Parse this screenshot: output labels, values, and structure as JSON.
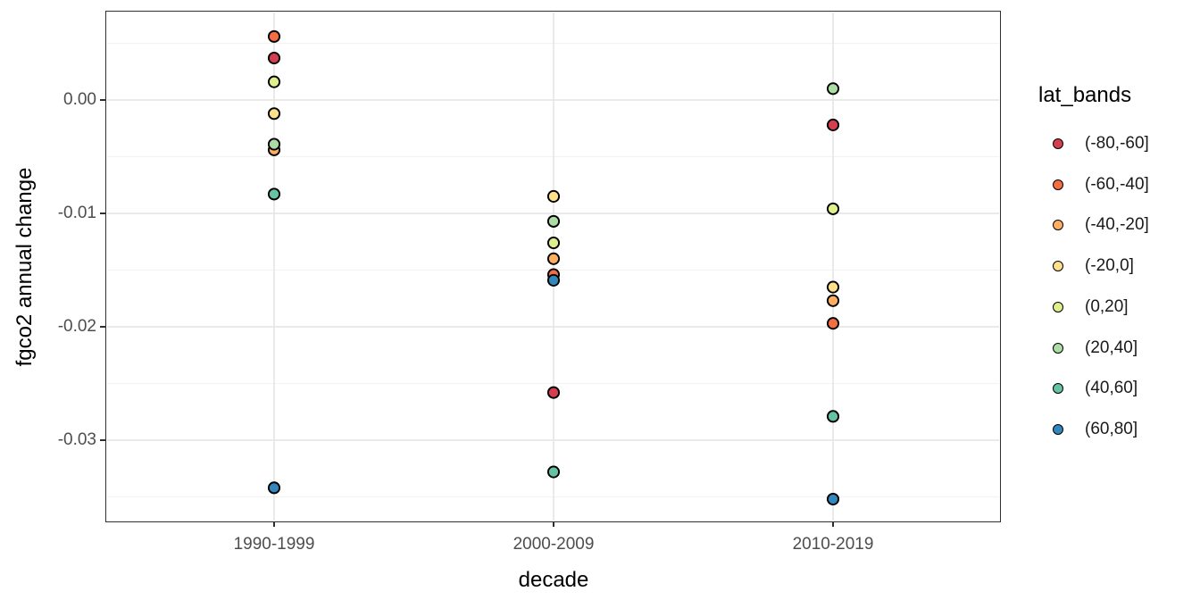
{
  "figure": {
    "background": "#ffffff",
    "panel_border_color": "#2f2f2f",
    "grid_major_color": "#e4e4e4",
    "grid_minor_color": "#f3f3f3",
    "tick_text_color": "#4d4d4d"
  },
  "chart_data": {
    "type": "scatter",
    "title": "",
    "xlabel": "decade",
    "ylabel": "fgco2 annual change",
    "legend_title": "lat_bands",
    "legend_position": "right",
    "grid": true,
    "categories": [
      "1990-1999",
      "2000-2009",
      "2010-2019"
    ],
    "ylim": [
      -0.0371,
      0.0077
    ],
    "yticks": [
      0,
      -0.01,
      -0.02,
      -0.03
    ],
    "ytick_labels": [
      "0.00",
      "-0.01",
      "-0.02",
      "-0.03"
    ],
    "minor_grid_step": 0.005,
    "point_style": {
      "stroke": "#000000",
      "stroke_width": 1.9,
      "radius": 6.1
    },
    "series": [
      {
        "name": "(-80,-60]",
        "color": "#d53e4f",
        "values": [
          0.0037,
          -0.0258,
          -0.0022
        ]
      },
      {
        "name": "(-60,-40]",
        "color": "#f46d43",
        "values": [
          0.0056,
          -0.0154,
          -0.0197
        ]
      },
      {
        "name": "(-40,-20]",
        "color": "#fdae61",
        "values": [
          -0.0044,
          -0.014,
          -0.0177
        ]
      },
      {
        "name": "(-20,0]",
        "color": "#fee08b",
        "values": [
          -0.0012,
          -0.0085,
          -0.0165
        ]
      },
      {
        "name": "(0,20]",
        "color": "#ddf08b",
        "values": [
          0.0016,
          -0.0126,
          -0.0096
        ]
      },
      {
        "name": "(20,40]",
        "color": "#abdda4",
        "values": [
          -0.0039,
          -0.0107,
          0.001
        ]
      },
      {
        "name": "(40,60]",
        "color": "#66c2a5",
        "values": [
          -0.0083,
          -0.0328,
          -0.0279
        ]
      },
      {
        "name": "(60,80]",
        "color": "#3288bd",
        "values": [
          -0.0342,
          -0.0159,
          -0.0352
        ]
      }
    ]
  }
}
